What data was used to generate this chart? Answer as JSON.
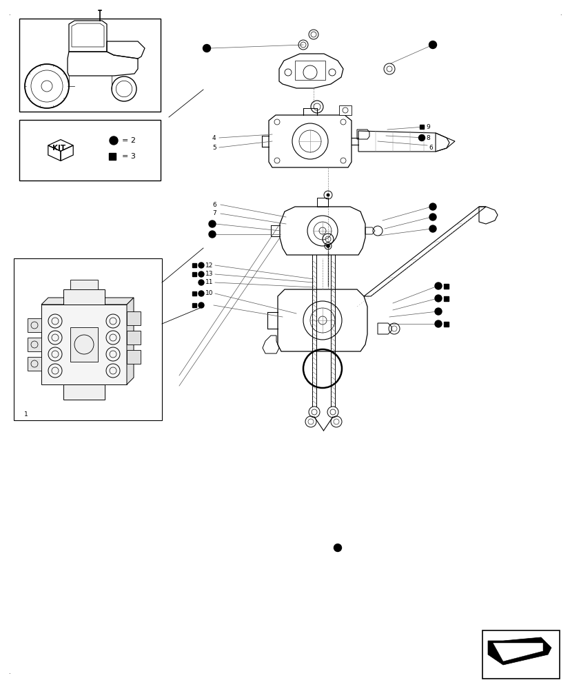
{
  "bg_color": "#ffffff",
  "fig_width": 8.28,
  "fig_height": 10.0,
  "dpi": 100,
  "lc": "#000000",
  "lc_light": "#aaaaaa",
  "lc_mid": "#666666",
  "dot_r": 5,
  "sq_s": 7,
  "lw_main": 0.7,
  "lw_thin": 0.5,
  "lw_thick": 1.0,
  "fs_label": 6.5,
  "fs_small": 5.5
}
